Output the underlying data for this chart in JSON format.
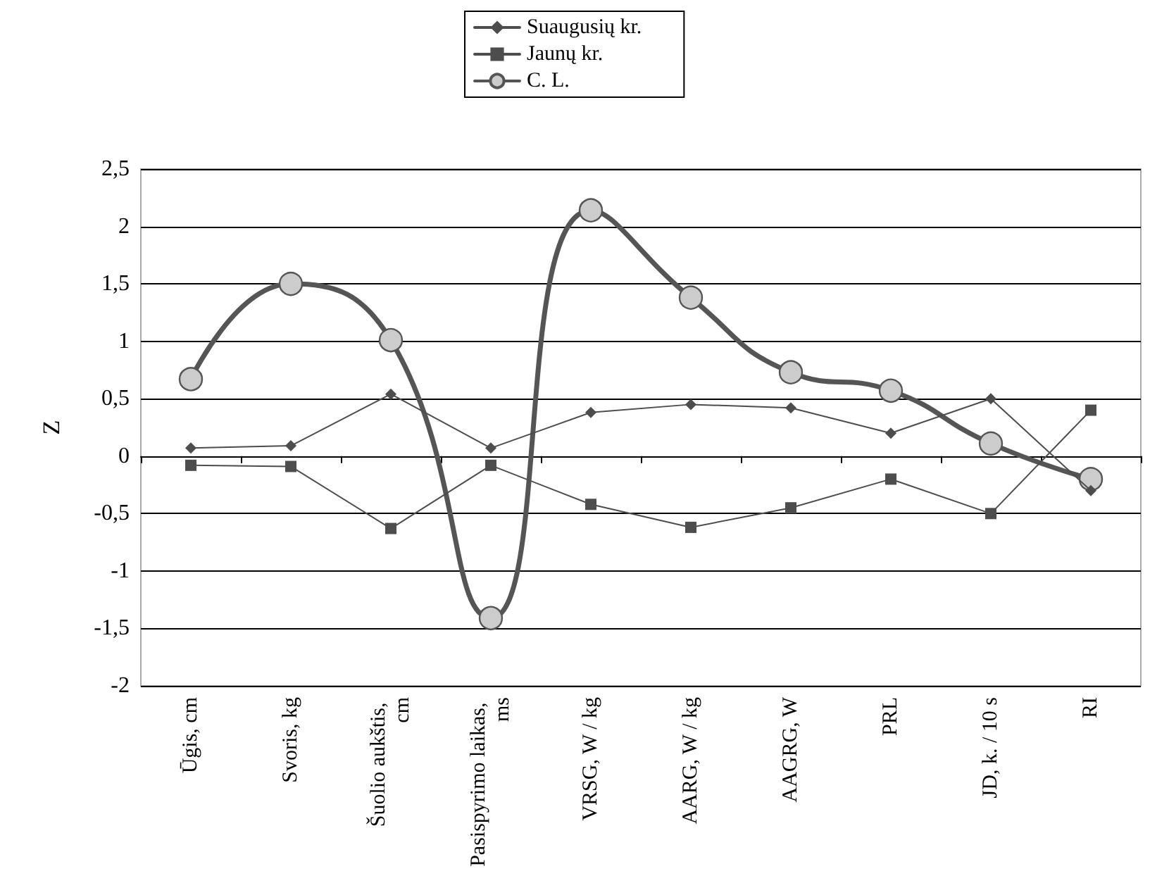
{
  "chart_data": {
    "type": "line",
    "ylabel": "Z",
    "categories": [
      "Ūgis, cm",
      "Svoris, kg",
      "Šuolio aukštis, cm",
      "Pasispyrimo laikas, ms",
      "VRSG, W / kg",
      "AARG, W / kg",
      "AAGRG, W",
      "PRL",
      "JD, k. / 10 s",
      "RI"
    ],
    "series": [
      {
        "name": "Suaugusių kr.",
        "color": "#4d4d4d",
        "marker": "diamond",
        "values": [
          0.07,
          0.09,
          0.54,
          0.07,
          0.38,
          0.45,
          0.42,
          0.2,
          0.5,
          -0.3
        ]
      },
      {
        "name": "Jaunų kr.",
        "color": "#4d4d4d",
        "marker": "square",
        "values": [
          -0.08,
          -0.09,
          -0.63,
          -0.08,
          -0.42,
          -0.62,
          -0.45,
          -0.2,
          -0.5,
          0.4
        ]
      },
      {
        "name": "C. L.",
        "color": "#555555",
        "marker": "circle",
        "values": [
          0.67,
          1.5,
          1.01,
          -1.41,
          2.14,
          1.38,
          0.73,
          0.57,
          0.11,
          -0.2
        ]
      }
    ],
    "ylim": [
      -2,
      2.5
    ],
    "yticks": [
      {
        "value": -2,
        "label": "-2"
      },
      {
        "value": -1.5,
        "label": "-1,5"
      },
      {
        "value": -1,
        "label": "-1"
      },
      {
        "value": -0.5,
        "label": "-0,5"
      },
      {
        "value": 0,
        "label": "0"
      },
      {
        "value": 0.5,
        "label": "0,5"
      },
      {
        "value": 1,
        "label": "1"
      },
      {
        "value": 1.5,
        "label": "1,5"
      },
      {
        "value": 2,
        "label": "2"
      },
      {
        "value": 2.5,
        "label": "2,5"
      }
    ],
    "grid": "y",
    "legend": "top"
  }
}
